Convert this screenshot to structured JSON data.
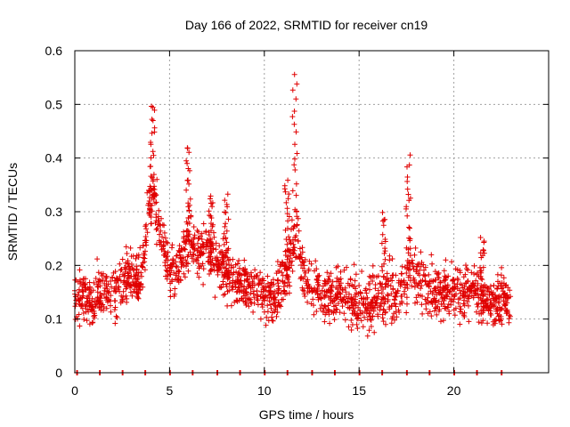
{
  "chart_data": {
    "type": "scatter",
    "title": "Day 166 of 2022, SRMTID for receiver cn19",
    "xlabel": "GPS time / hours",
    "ylabel": "SRMTID / TECUs",
    "xlim": [
      0,
      25
    ],
    "ylim": [
      0,
      0.6
    ],
    "x_ticks": [
      0,
      5,
      10,
      15,
      20
    ],
    "x_tick_labels": [
      "0",
      "5",
      "10",
      "15",
      "20"
    ],
    "y_ticks": [
      0,
      0.1,
      0.2,
      0.3,
      0.4,
      0.5,
      0.6
    ],
    "y_tick_labels": [
      "0",
      "0.1",
      "0.2",
      "0.3",
      "0.4",
      "0.5",
      "0.6"
    ],
    "grid": true,
    "legend": "none",
    "marker": "plus",
    "color": "#e00000",
    "x_range_of_data": [
      0,
      23
    ],
    "series": [
      {
        "name": "SRMTID",
        "profile_x": [
          0,
          0.5,
          1.0,
          1.5,
          2.0,
          2.5,
          3.0,
          3.5,
          3.9,
          4.2,
          4.6,
          5.0,
          5.5,
          6.0,
          6.5,
          7.0,
          7.5,
          8.0,
          8.5,
          9.0,
          9.5,
          10.0,
          10.5,
          11.0,
          11.5,
          11.75,
          12.0,
          12.5,
          13.0,
          14.0,
          15.0,
          16.0,
          16.5,
          17.0,
          17.5,
          17.7,
          18.0,
          18.5,
          19.0,
          19.5,
          20.0,
          20.5,
          21.0,
          21.5,
          22.0,
          22.5,
          23.0
        ],
        "profile_center": [
          0.15,
          0.14,
          0.13,
          0.15,
          0.14,
          0.17,
          0.18,
          0.17,
          0.3,
          0.33,
          0.24,
          0.19,
          0.2,
          0.25,
          0.22,
          0.23,
          0.21,
          0.19,
          0.17,
          0.17,
          0.16,
          0.15,
          0.13,
          0.17,
          0.22,
          0.26,
          0.2,
          0.16,
          0.15,
          0.15,
          0.13,
          0.13,
          0.15,
          0.14,
          0.17,
          0.2,
          0.18,
          0.16,
          0.15,
          0.15,
          0.15,
          0.15,
          0.16,
          0.14,
          0.13,
          0.14,
          0.13
        ],
        "spread": 0.045,
        "peaks": [
          {
            "x": 4.1,
            "y": 0.5
          },
          {
            "x": 6.0,
            "y": 0.42
          },
          {
            "x": 7.2,
            "y": 0.33
          },
          {
            "x": 8.0,
            "y": 0.33
          },
          {
            "x": 11.6,
            "y": 0.55
          },
          {
            "x": 11.2,
            "y": 0.36
          },
          {
            "x": 17.6,
            "y": 0.4
          },
          {
            "x": 16.3,
            "y": 0.3
          },
          {
            "x": 21.5,
            "y": 0.25
          }
        ],
        "zero_markers_x": [
          0.1,
          1.3,
          2.5,
          3.7,
          5.0,
          6.2,
          7.5,
          8.7,
          10.0,
          11.2,
          12.5,
          13.7,
          15.0,
          16.2,
          17.5,
          18.7,
          20.0,
          21.2,
          22.5
        ]
      }
    ]
  }
}
